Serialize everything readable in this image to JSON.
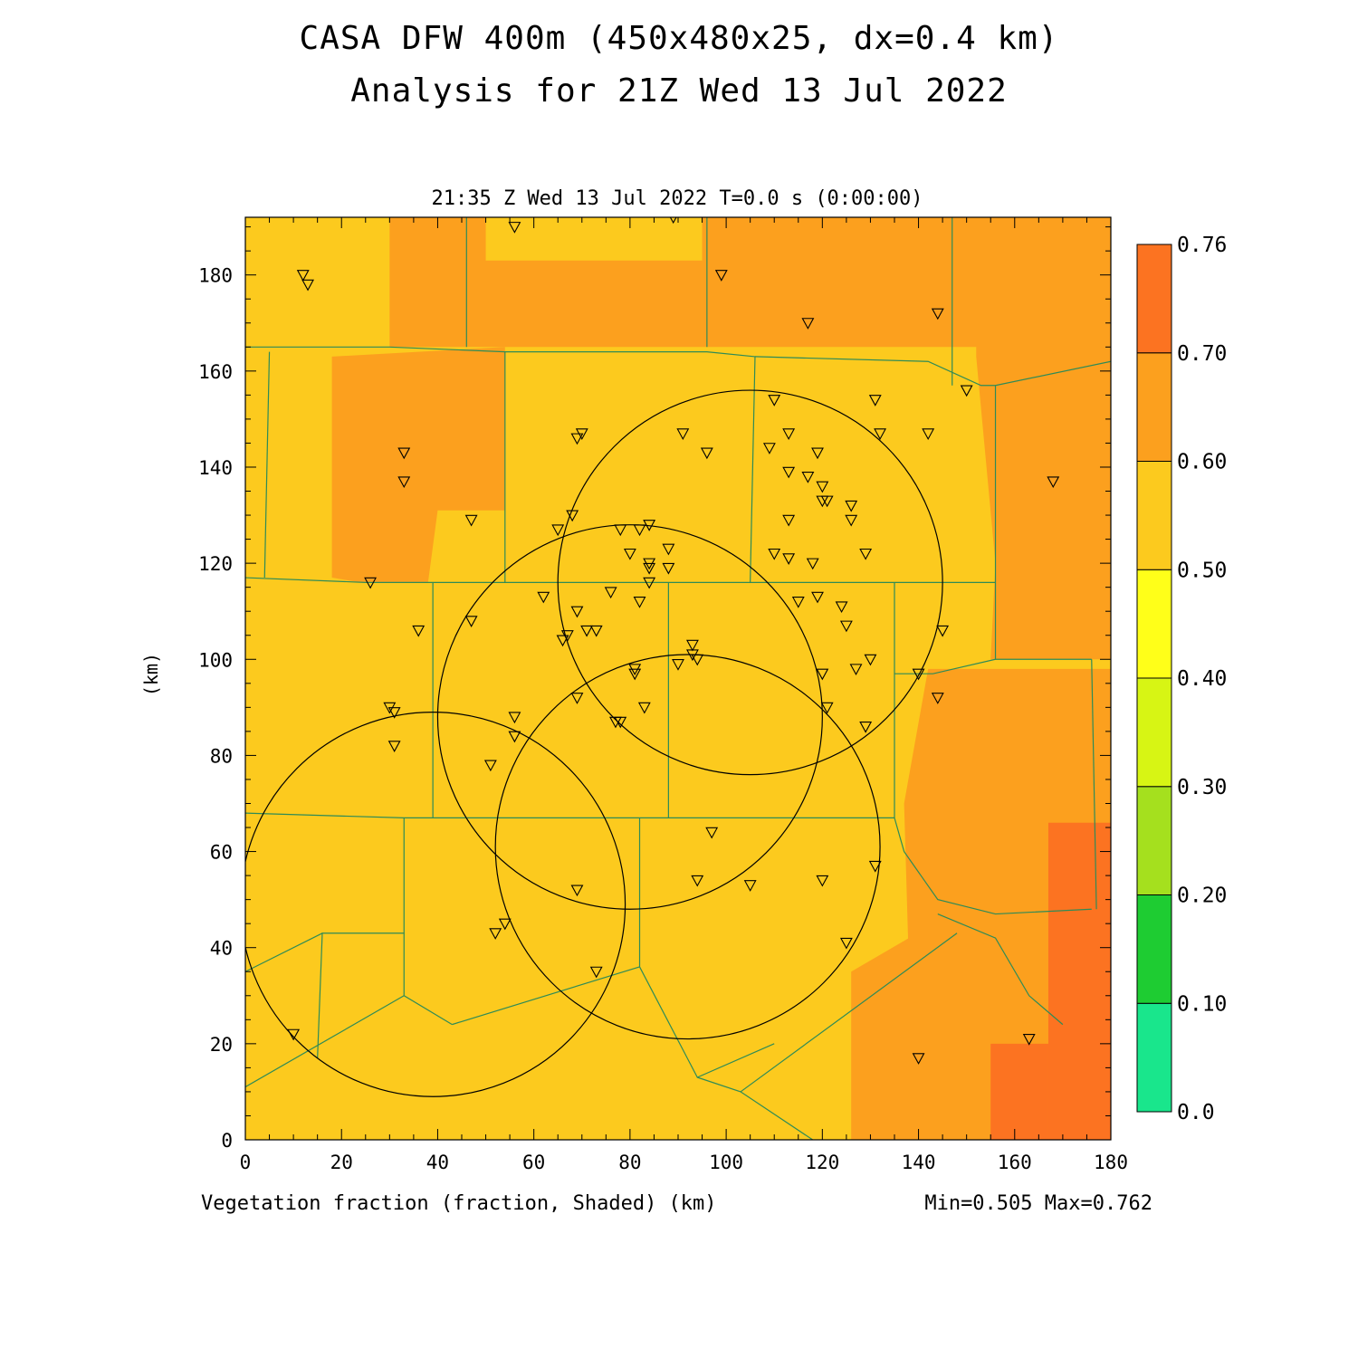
{
  "header": {
    "title_line1": "CASA DFW 400m (450x480x25, dx=0.4 km)",
    "title_line2": "Analysis for 21Z Wed 13 Jul 2022",
    "valid_time": "21:35 Z Wed 13 Jul 2022   T=0.0 s (0:00:00)"
  },
  "footer": {
    "field_label": "Vegetation fraction (fraction, Shaded)  (km)",
    "minmax": "Min=0.505 Max=0.762"
  },
  "chart_data": {
    "type": "heatmap",
    "title": "CASA DFW 400m (450x480x25, dx=0.4 km)",
    "subtitle": "Analysis for 21Z Wed 13 Jul 2022",
    "xlabel": "(km)",
    "ylabel": "(km)",
    "xlim": [
      0,
      180
    ],
    "ylim": [
      0,
      192
    ],
    "x_ticks": [
      0,
      20,
      40,
      60,
      80,
      100,
      120,
      140,
      160,
      180
    ],
    "y_ticks": [
      0,
      20,
      40,
      60,
      80,
      100,
      120,
      140,
      160,
      180
    ],
    "colorbar": {
      "levels": [
        "0.0",
        "0.10",
        "0.20",
        "0.30",
        "0.40",
        "0.50",
        "0.60",
        "0.70",
        "0.76"
      ],
      "colors": [
        "#19e68c",
        "#1ecc32",
        "#a5e01e",
        "#d7f514",
        "#ffff19",
        "#fcca1e",
        "#fca01e",
        "#fc7321"
      ]
    },
    "field_min": 0.505,
    "field_max": 0.762,
    "shaded_regions": [
      {
        "level": "0.60-0.70",
        "color": "#fca01e",
        "polygon": [
          [
            30,
            0
          ],
          [
            30,
            192
          ],
          [
            30,
            192
          ]
        ]
      },
      {
        "level": "0.60-0.70",
        "color": "#fca01e",
        "polygon": [
          [
            30,
            165
          ],
          [
            30,
            192
          ],
          [
            50,
            192
          ],
          [
            50,
            183
          ],
          [
            95,
            183
          ],
          [
            95,
            165
          ]
        ]
      },
      {
        "level": "0.60-0.70",
        "color": "#fca01e",
        "polygon": [
          [
            95,
            165
          ],
          [
            95,
            192
          ],
          [
            180,
            192
          ],
          [
            180,
            165
          ]
        ]
      },
      {
        "level": "0.60-0.70",
        "color": "#fca01e",
        "polygon": [
          [
            18,
            117
          ],
          [
            18,
            163
          ],
          [
            54,
            165
          ],
          [
            54,
            131
          ],
          [
            40,
            131
          ],
          [
            38,
            116
          ],
          [
            24,
            116
          ]
        ]
      },
      {
        "level": "0.60-0.70",
        "color": "#fca01e",
        "polygon": [
          [
            152,
            163
          ],
          [
            152,
            192
          ],
          [
            180,
            192
          ],
          [
            180,
            100
          ],
          [
            155,
            100
          ],
          [
            156,
            120
          ]
        ]
      },
      {
        "level": "0.60-0.70",
        "color": "#fca01e",
        "polygon": [
          [
            142,
            98
          ],
          [
            137,
            70
          ],
          [
            138,
            36
          ],
          [
            138,
            42
          ],
          [
            126,
            35
          ],
          [
            126,
            0
          ],
          [
            180,
            0
          ],
          [
            180,
            98
          ]
        ]
      },
      {
        "level": "0.70-0.76",
        "color": "#fc7321",
        "polygon": [
          [
            167,
            66
          ],
          [
            167,
            0
          ],
          [
            180,
            0
          ],
          [
            180,
            66
          ]
        ]
      },
      {
        "level": "0.70-0.76",
        "color": "#fc7321",
        "polygon": [
          [
            155,
            0
          ],
          [
            167,
            0
          ],
          [
            167,
            20
          ],
          [
            155,
            20
          ]
        ]
      }
    ],
    "county_boundaries": [
      [
        [
          0,
          165
        ],
        [
          30,
          165
        ],
        [
          54,
          164
        ],
        [
          96,
          164
        ],
        [
          106,
          163
        ],
        [
          142,
          162
        ],
        [
          153,
          157
        ],
        [
          156,
          157
        ],
        [
          180,
          162
        ]
      ],
      [
        [
          0,
          117
        ],
        [
          25,
          116
        ],
        [
          38,
          116
        ],
        [
          105,
          116
        ],
        [
          145,
          116
        ],
        [
          156,
          116
        ]
      ],
      [
        [
          0,
          68
        ],
        [
          33,
          67
        ],
        [
          60,
          67
        ],
        [
          88,
          67
        ],
        [
          135,
          67
        ]
      ],
      [
        [
          5,
          164
        ],
        [
          4,
          117
        ]
      ],
      [
        [
          46,
          192
        ],
        [
          46,
          165
        ]
      ],
      [
        [
          54,
          164
        ],
        [
          54,
          116
        ]
      ],
      [
        [
          96,
          192
        ],
        [
          96,
          165
        ]
      ],
      [
        [
          106,
          163
        ],
        [
          105,
          116
        ]
      ],
      [
        [
          147,
          192
        ],
        [
          147,
          157
        ]
      ],
      [
        [
          156,
          157
        ],
        [
          156,
          100
        ],
        [
          143,
          97
        ],
        [
          135,
          97
        ]
      ],
      [
        [
          135,
          116
        ],
        [
          135,
          67
        ],
        [
          137,
          60
        ],
        [
          144,
          50
        ],
        [
          156,
          47
        ],
        [
          176,
          48
        ]
      ],
      [
        [
          176,
          100
        ],
        [
          177,
          48
        ]
      ],
      [
        [
          156,
          100
        ],
        [
          176,
          100
        ]
      ],
      [
        [
          39,
          116
        ],
        [
          39,
          67
        ]
      ],
      [
        [
          88,
          116
        ],
        [
          88,
          67
        ]
      ],
      [
        [
          33,
          67
        ],
        [
          33,
          43
        ],
        [
          16,
          43
        ],
        [
          15,
          17
        ]
      ],
      [
        [
          0,
          35
        ],
        [
          16,
          43
        ]
      ],
      [
        [
          33,
          43
        ],
        [
          33,
          30
        ],
        [
          43,
          24
        ]
      ],
      [
        [
          82,
          67
        ],
        [
          82,
          36
        ],
        [
          94,
          13
        ],
        [
          110,
          20
        ]
      ],
      [
        [
          43,
          24
        ],
        [
          82,
          36
        ]
      ],
      [
        [
          0,
          11
        ],
        [
          33,
          30
        ]
      ],
      [
        [
          94,
          13
        ],
        [
          103,
          10
        ],
        [
          118,
          0
        ]
      ],
      [
        [
          103,
          10
        ],
        [
          148,
          43
        ]
      ],
      [
        [
          144,
          47
        ],
        [
          156,
          42
        ],
        [
          163,
          30
        ],
        [
          170,
          24
        ]
      ]
    ],
    "range_rings": [
      {
        "center_x": 39,
        "center_y": 49,
        "radius": 40
      },
      {
        "center_x": 80,
        "center_y": 88,
        "radius": 40
      },
      {
        "center_x": 92,
        "center_y": 61,
        "radius": 40
      },
      {
        "center_x": 105,
        "center_y": 116,
        "radius": 40
      }
    ],
    "station_markers": [
      [
        12,
        180
      ],
      [
        13,
        178
      ],
      [
        56,
        190
      ],
      [
        89,
        192
      ],
      [
        99,
        180
      ],
      [
        117,
        170
      ],
      [
        144,
        172
      ],
      [
        33,
        143
      ],
      [
        33,
        137
      ],
      [
        70,
        147
      ],
      [
        69,
        146
      ],
      [
        91,
        147
      ],
      [
        96,
        143
      ],
      [
        109,
        144
      ],
      [
        113,
        147
      ],
      [
        119,
        143
      ],
      [
        110,
        154
      ],
      [
        131,
        154
      ],
      [
        132,
        147
      ],
      [
        142,
        147
      ],
      [
        150,
        156
      ],
      [
        168,
        137
      ],
      [
        47,
        129
      ],
      [
        65,
        127
      ],
      [
        68,
        130
      ],
      [
        78,
        127
      ],
      [
        82,
        127
      ],
      [
        84,
        128
      ],
      [
        88,
        123
      ],
      [
        80,
        122
      ],
      [
        84,
        120
      ],
      [
        84,
        119
      ],
      [
        88,
        119
      ],
      [
        84,
        116
      ],
      [
        62,
        113
      ],
      [
        76,
        114
      ],
      [
        82,
        112
      ],
      [
        69,
        110
      ],
      [
        67,
        105
      ],
      [
        66,
        104
      ],
      [
        71,
        106
      ],
      [
        73,
        106
      ],
      [
        47,
        108
      ],
      [
        36,
        106
      ],
      [
        113,
        139
      ],
      [
        117,
        138
      ],
      [
        120,
        136
      ],
      [
        120,
        133
      ],
      [
        121,
        133
      ],
      [
        126,
        132
      ],
      [
        126,
        129
      ],
      [
        113,
        129
      ],
      [
        110,
        122
      ],
      [
        113,
        121
      ],
      [
        118,
        120
      ],
      [
        129,
        122
      ],
      [
        115,
        112
      ],
      [
        119,
        113
      ],
      [
        124,
        111
      ],
      [
        125,
        107
      ],
      [
        145,
        106
      ],
      [
        93,
        103
      ],
      [
        93,
        101
      ],
      [
        94,
        100
      ],
      [
        90,
        99
      ],
      [
        127,
        98
      ],
      [
        130,
        100
      ],
      [
        120,
        97
      ],
      [
        140,
        97
      ],
      [
        144,
        92
      ],
      [
        26,
        116
      ],
      [
        81,
        98
      ],
      [
        81,
        97
      ],
      [
        69,
        92
      ],
      [
        83,
        90
      ],
      [
        30,
        90
      ],
      [
        31,
        89
      ],
      [
        77,
        87
      ],
      [
        78,
        87
      ],
      [
        56,
        88
      ],
      [
        56,
        84
      ],
      [
        31,
        82
      ],
      [
        51,
        78
      ],
      [
        121,
        90
      ],
      [
        129,
        86
      ],
      [
        97,
        64
      ],
      [
        94,
        54
      ],
      [
        105,
        53
      ],
      [
        120,
        54
      ],
      [
        131,
        57
      ],
      [
        69,
        52
      ],
      [
        54,
        45
      ],
      [
        52,
        43
      ],
      [
        125,
        41
      ],
      [
        73,
        35
      ],
      [
        10,
        22
      ],
      [
        140,
        17
      ],
      [
        163,
        21
      ]
    ]
  }
}
